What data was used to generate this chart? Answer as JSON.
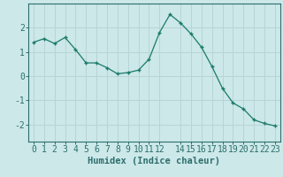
{
  "x": [
    0,
    1,
    2,
    3,
    4,
    5,
    6,
    7,
    8,
    9,
    10,
    11,
    12,
    13,
    14,
    15,
    16,
    17,
    18,
    19,
    20,
    21,
    22,
    23
  ],
  "y": [
    1.4,
    1.55,
    1.35,
    1.6,
    1.1,
    0.55,
    0.55,
    0.35,
    0.1,
    0.15,
    0.25,
    0.7,
    1.8,
    2.55,
    2.2,
    1.75,
    1.2,
    0.4,
    -0.5,
    -1.1,
    -1.35,
    -1.8,
    -1.95,
    -2.05
  ],
  "line_color": "#1a7a6a",
  "marker": "+",
  "bg_color": "#cce8e8",
  "grid_color": "#b8d4d4",
  "axis_color": "#2e6e6e",
  "text_color": "#2e6e6e",
  "xlabel": "Humidex (Indice chaleur)",
  "xlabel_fontsize": 7.5,
  "tick_fontsize": 7,
  "yticks": [
    -2,
    -1,
    0,
    1,
    2
  ],
  "xticks": [
    0,
    1,
    2,
    3,
    4,
    5,
    6,
    7,
    8,
    9,
    10,
    11,
    12,
    14,
    15,
    16,
    17,
    18,
    19,
    20,
    21,
    22,
    23
  ],
  "xlim": [
    -0.5,
    23.5
  ],
  "ylim": [
    -2.7,
    3.0
  ]
}
